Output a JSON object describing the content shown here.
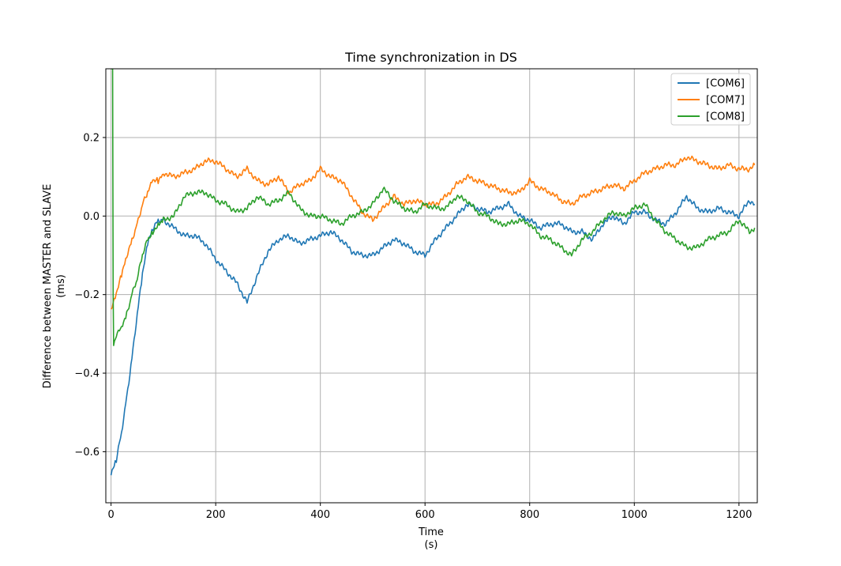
{
  "chart_data": {
    "type": "line",
    "title": "Time synchronization in DS",
    "xlabel": "Time",
    "xlabel_unit": "(s)",
    "ylabel": "Difference between MASTER and SLAVE",
    "ylabel_unit": "(ms)",
    "xlim": [
      -10,
      1235
    ],
    "ylim": [
      -0.73,
      0.375
    ],
    "xticks": [
      0,
      200,
      400,
      600,
      800,
      1000,
      1200
    ],
    "xtick_labels": [
      "0",
      "200",
      "400",
      "600",
      "800",
      "1000",
      "1200"
    ],
    "yticks": [
      -0.6,
      -0.4,
      -0.2,
      0.0,
      0.2
    ],
    "ytick_labels": [
      "−0.6",
      "−0.4",
      "−0.2",
      "0.0",
      "0.2"
    ],
    "grid": true,
    "legend_position": "top-right",
    "series": [
      {
        "name": "[COM6]",
        "color": "#1f77b4",
        "x": [
          0,
          10,
          20,
          30,
          40,
          50,
          60,
          70,
          80,
          90,
          100,
          120,
          140,
          160,
          180,
          200,
          220,
          240,
          260,
          280,
          300,
          320,
          340,
          360,
          380,
          400,
          420,
          440,
          460,
          480,
          500,
          520,
          540,
          560,
          580,
          600,
          620,
          640,
          660,
          680,
          700,
          720,
          740,
          760,
          780,
          800,
          820,
          840,
          860,
          880,
          900,
          920,
          940,
          960,
          980,
          1000,
          1020,
          1040,
          1060,
          1080,
          1100,
          1120,
          1140,
          1160,
          1180,
          1200,
          1220,
          1230
        ],
        "y": [
          -0.66,
          -0.62,
          -0.55,
          -0.46,
          -0.36,
          -0.25,
          -0.15,
          -0.07,
          -0.03,
          -0.01,
          -0.01,
          -0.03,
          -0.05,
          -0.05,
          -0.07,
          -0.11,
          -0.14,
          -0.17,
          -0.22,
          -0.15,
          -0.09,
          -0.06,
          -0.05,
          -0.07,
          -0.06,
          -0.05,
          -0.04,
          -0.06,
          -0.09,
          -0.1,
          -0.1,
          -0.08,
          -0.06,
          -0.07,
          -0.09,
          -0.1,
          -0.06,
          -0.03,
          0.0,
          0.03,
          0.02,
          0.01,
          0.02,
          0.03,
          0.0,
          -0.01,
          -0.03,
          -0.02,
          -0.02,
          -0.04,
          -0.04,
          -0.06,
          -0.02,
          0.0,
          -0.02,
          0.01,
          0.01,
          -0.01,
          -0.02,
          0.01,
          0.05,
          0.02,
          0.01,
          0.02,
          0.01,
          0.0,
          0.04,
          0.03
        ]
      },
      {
        "name": "[COM7]",
        "color": "#ff7f0e",
        "x": [
          0,
          10,
          20,
          30,
          40,
          50,
          60,
          70,
          80,
          90,
          100,
          120,
          140,
          160,
          180,
          200,
          220,
          240,
          260,
          280,
          300,
          320,
          340,
          360,
          380,
          400,
          420,
          440,
          460,
          480,
          500,
          520,
          540,
          560,
          580,
          600,
          620,
          640,
          660,
          680,
          700,
          720,
          740,
          760,
          780,
          800,
          820,
          840,
          860,
          880,
          900,
          920,
          940,
          960,
          980,
          1000,
          1020,
          1040,
          1060,
          1080,
          1100,
          1120,
          1140,
          1160,
          1180,
          1200,
          1220,
          1230
        ],
        "y": [
          -0.24,
          -0.2,
          -0.15,
          -0.1,
          -0.06,
          -0.02,
          0.03,
          0.06,
          0.09,
          0.09,
          0.11,
          0.1,
          0.11,
          0.12,
          0.14,
          0.14,
          0.12,
          0.1,
          0.12,
          0.09,
          0.08,
          0.1,
          0.06,
          0.08,
          0.09,
          0.12,
          0.1,
          0.09,
          0.05,
          0.01,
          -0.01,
          0.02,
          0.05,
          0.03,
          0.04,
          0.03,
          0.03,
          0.05,
          0.08,
          0.1,
          0.09,
          0.08,
          0.07,
          0.06,
          0.06,
          0.09,
          0.07,
          0.06,
          0.04,
          0.03,
          0.05,
          0.06,
          0.07,
          0.08,
          0.07,
          0.09,
          0.11,
          0.12,
          0.13,
          0.13,
          0.15,
          0.14,
          0.13,
          0.12,
          0.13,
          0.12,
          0.12,
          0.13
        ]
      },
      {
        "name": "[COM8]",
        "color": "#2ca02c",
        "x": [
          0,
          3,
          4,
          5,
          10,
          20,
          30,
          40,
          50,
          60,
          70,
          80,
          90,
          100,
          120,
          140,
          160,
          180,
          200,
          220,
          240,
          260,
          280,
          300,
          320,
          340,
          360,
          380,
          400,
          420,
          440,
          460,
          480,
          500,
          520,
          540,
          560,
          580,
          600,
          620,
          640,
          660,
          680,
          700,
          720,
          740,
          760,
          780,
          800,
          820,
          840,
          860,
          880,
          900,
          920,
          940,
          960,
          980,
          1000,
          1020,
          1040,
          1060,
          1080,
          1100,
          1120,
          1140,
          1160,
          1180,
          1200,
          1220,
          1230
        ],
        "y": [
          0.375,
          0.375,
          -0.2,
          -0.33,
          -0.3,
          -0.28,
          -0.25,
          -0.2,
          -0.16,
          -0.1,
          -0.06,
          -0.04,
          -0.02,
          -0.01,
          0.0,
          0.05,
          0.06,
          0.06,
          0.04,
          0.03,
          0.01,
          0.02,
          0.05,
          0.03,
          0.04,
          0.06,
          0.02,
          0.0,
          0.0,
          -0.01,
          -0.02,
          0.0,
          0.01,
          0.03,
          0.07,
          0.04,
          0.02,
          0.01,
          0.03,
          0.02,
          0.02,
          0.05,
          0.04,
          0.01,
          0.0,
          -0.02,
          -0.02,
          -0.01,
          -0.02,
          -0.05,
          -0.06,
          -0.08,
          -0.1,
          -0.06,
          -0.04,
          -0.01,
          0.01,
          0.0,
          0.02,
          0.03,
          -0.01,
          -0.04,
          -0.06,
          -0.08,
          -0.08,
          -0.06,
          -0.05,
          -0.04,
          -0.01,
          -0.04,
          -0.03
        ]
      }
    ]
  }
}
